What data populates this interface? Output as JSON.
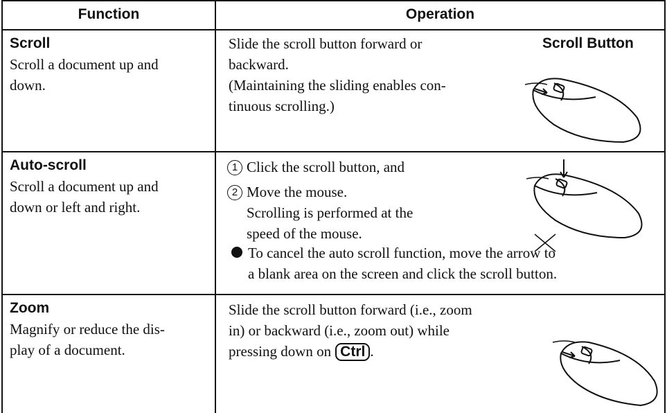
{
  "header": {
    "function": "Function",
    "operation": "Operation"
  },
  "rows": [
    {
      "title": "Scroll",
      "description": [
        "Scroll a document up and",
        "down."
      ],
      "operation": [
        "Slide the scroll button forward or",
        "backward.",
        "(Maintaining the sliding enables con-",
        "tinuous scrolling.)"
      ],
      "image_label": "Scroll Button"
    },
    {
      "title": "Auto-scroll",
      "description": [
        "Scroll a document up and",
        "down or left and right."
      ],
      "steps": [
        {
          "number": "1",
          "lines": [
            "Click the scroll button, and"
          ]
        },
        {
          "number": "2",
          "lines": [
            "Move the mouse.",
            "Scrolling is performed at the",
            "speed of the mouse."
          ]
        }
      ],
      "note": [
        "To cancel the auto scroll function, move the arrow to",
        "a blank area on the screen and click the scroll button."
      ]
    },
    {
      "title": "Zoom",
      "description": [
        "Magnify or reduce the dis-",
        "play of a document."
      ],
      "operation": [
        "Slide the scroll button forward (i.e., zoom",
        "in) or backward (i.e., zoom out) while"
      ],
      "last_line": {
        "before": "pressing down on",
        "key": "Ctrl",
        "after": "."
      }
    }
  ]
}
